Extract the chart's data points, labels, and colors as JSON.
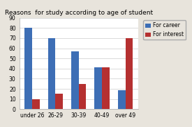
{
  "title": "Reasons  for study according to age of student",
  "categories": [
    "under 26",
    "26-29",
    "30-39",
    "40-49",
    "over 49"
  ],
  "series": [
    {
      "label": "For career",
      "color": "#3d6eb5",
      "values": [
        80,
        70,
        57,
        41,
        19
      ]
    },
    {
      "label": "For interest",
      "color": "#b53030",
      "values": [
        10,
        15,
        25,
        41,
        70
      ]
    }
  ],
  "ylim": [
    0,
    90
  ],
  "yticks": [
    0,
    10,
    20,
    30,
    40,
    50,
    60,
    70,
    80,
    90
  ],
  "bar_width": 0.32,
  "title_fontsize": 6.5,
  "tick_fontsize": 5.5,
  "legend_fontsize": 5.5,
  "plot_bg": "#ffffff",
  "fig_bg": "#e8e4dc"
}
